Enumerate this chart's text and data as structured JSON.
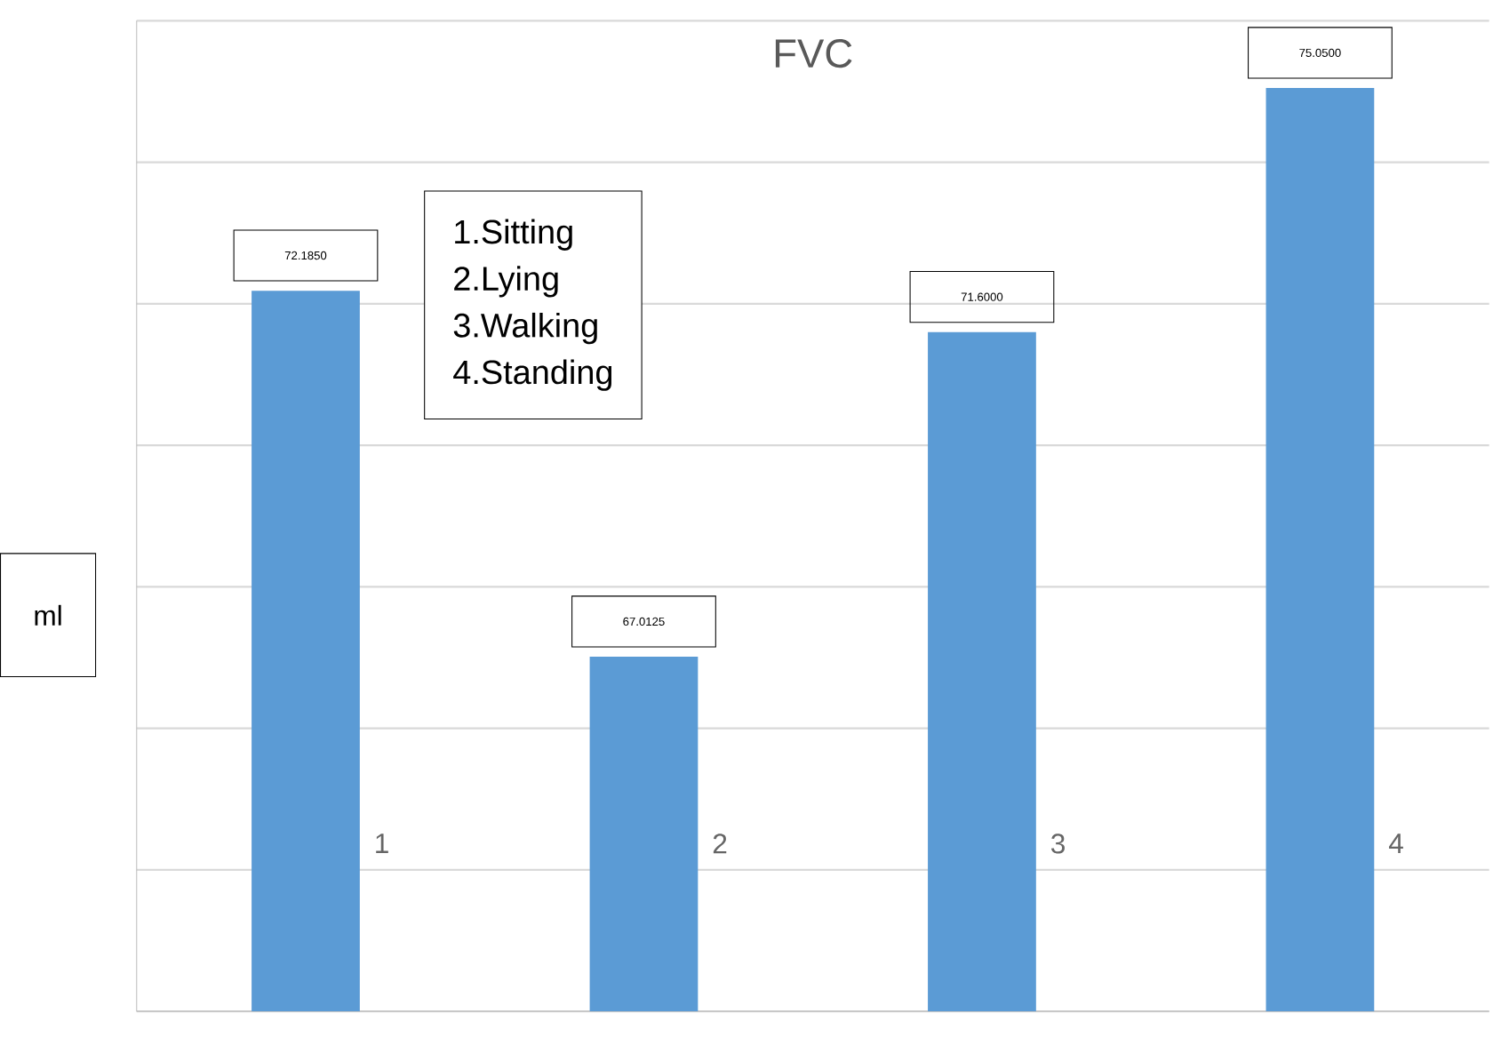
{
  "chart_data": {
    "type": "bar",
    "title": "FVC",
    "ylabel": "ml",
    "categories": [
      "1",
      "2",
      "3",
      "4"
    ],
    "values": [
      72.185,
      67.0125,
      71.6,
      75.05
    ],
    "value_labels": [
      "72.1850",
      "67.0125",
      "71.6000",
      "75.0500"
    ],
    "color": "#5b9bd5",
    "ylim": [
      62,
      76
    ],
    "yticks": [
      {
        "value": 62,
        "label": null
      },
      {
        "value": 64,
        "label": null
      },
      {
        "value": 66,
        "label": null
      },
      {
        "value": 68,
        "label": null
      },
      {
        "value": 70,
        "label": null
      },
      {
        "value": 72,
        "label": null
      },
      {
        "value": 74,
        "label": null
      },
      {
        "value": 76,
        "label": null
      }
    ],
    "grid": "y",
    "annotations": [
      "1.Sitting",
      "2.Lying",
      "3.Walking",
      "4.Standing"
    ]
  }
}
